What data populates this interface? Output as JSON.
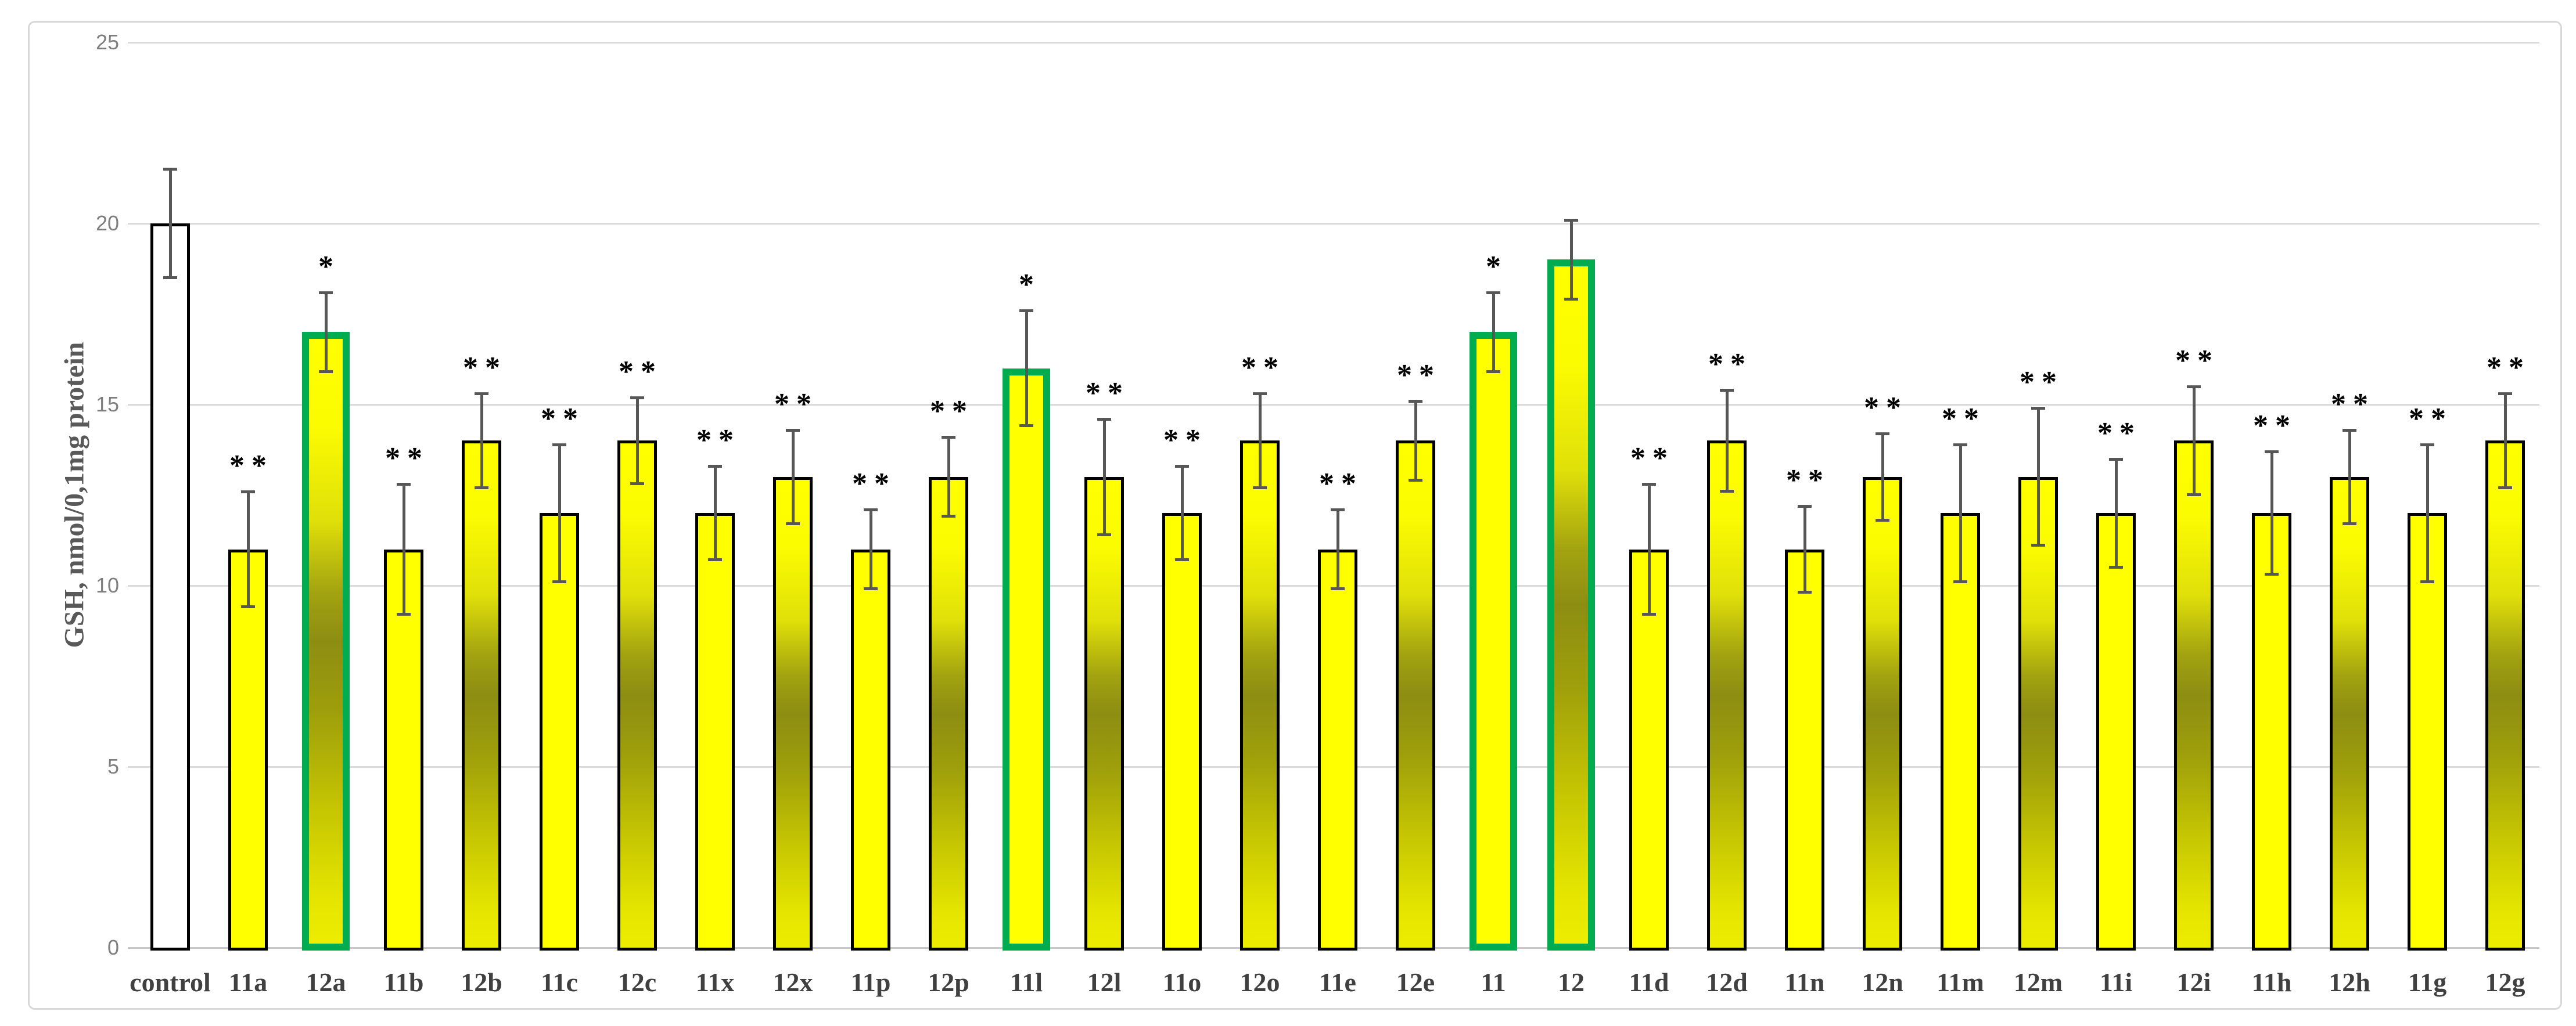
{
  "chart_data": {
    "type": "bar",
    "title": "",
    "xlabel": "",
    "ylabel": "GSH, nmol/0,1mg protein",
    "ylim": [
      0,
      25
    ],
    "yticks": [
      0,
      5,
      10,
      15,
      20,
      25
    ],
    "grid": true,
    "legend_position": "none",
    "categories": [
      "control",
      "11a",
      "12a",
      "11b",
      "12b",
      "11c",
      "12c",
      "11x",
      "12x",
      "11p",
      "12p",
      "11l",
      "12l",
      "11o",
      "12o",
      "11e",
      "12e",
      "11",
      "12",
      "11d",
      "12d",
      "11n",
      "12n",
      "11m",
      "12m",
      "11i",
      "12i",
      "11h",
      "12h",
      "11g",
      "12g"
    ],
    "values": [
      20,
      11,
      17,
      11,
      14,
      12,
      14,
      12,
      13,
      11,
      13,
      16,
      13,
      12,
      14,
      11,
      14,
      17,
      19,
      11,
      14,
      11,
      13,
      12,
      13,
      12,
      14,
      12,
      13,
      12,
      14
    ],
    "errors": [
      1.5,
      1.6,
      1.1,
      1.8,
      1.3,
      1.9,
      1.2,
      1.3,
      1.3,
      1.1,
      1.1,
      1.6,
      1.6,
      1.3,
      1.3,
      1.1,
      1.1,
      1.1,
      1.1,
      1.8,
      1.4,
      1.2,
      1.2,
      1.9,
      1.9,
      1.5,
      1.5,
      1.7,
      1.3,
      1.9,
      1.3
    ],
    "significance": [
      "",
      "**",
      "*",
      "**",
      "**",
      "**",
      "**",
      "**",
      "**",
      "**",
      "**",
      "*",
      "**",
      "**",
      "**",
      "**",
      "**",
      "*",
      "",
      "**",
      "**",
      "**",
      "**",
      "**",
      "**",
      "**",
      "**",
      "**",
      "**",
      "**",
      "**"
    ],
    "green_outlined_bars": [
      "12a",
      "11l",
      "11",
      "12"
    ],
    "fill_styles": [
      "white",
      "yellow",
      "gradient",
      "yellow",
      "gradient",
      "yellow",
      "gradient",
      "yellow",
      "gradient",
      "yellow",
      "gradient",
      "yellow",
      "gradient",
      "yellow",
      "gradient",
      "yellow",
      "gradient",
      "yellow",
      "gradient",
      "yellow",
      "gradient",
      "yellow",
      "gradient",
      "yellow",
      "gradient",
      "yellow",
      "gradient",
      "yellow",
      "gradient",
      "yellow",
      "gradient"
    ]
  },
  "colors": {
    "bar_yellow": "#ffff00",
    "bar_gradient_dark": "#8d8d12",
    "bar_border_black": "#000000",
    "highlight_green": "#00ac4f",
    "control_fill": "#ffffff",
    "error_bar": "#575757",
    "gridline": "#dadada",
    "tick_label": "#7f7f7f",
    "x_label": "#404040",
    "y_title": "#595959",
    "figure_border": "#d8d8d8",
    "background": "#ffffff"
  }
}
